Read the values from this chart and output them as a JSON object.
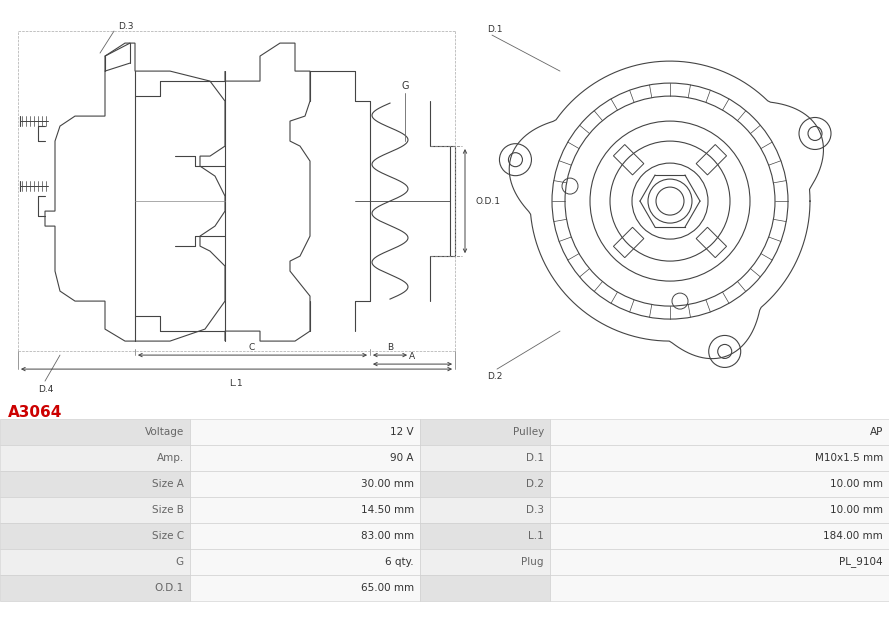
{
  "title": "A3064",
  "title_color": "#cc0000",
  "bg_color": "#ffffff",
  "table": {
    "left_labels": [
      "Voltage",
      "Amp.",
      "Size A",
      "Size B",
      "Size C",
      "G",
      "O.D.1"
    ],
    "left_values": [
      "12 V",
      "90 A",
      "30.00 mm",
      "14.50 mm",
      "83.00 mm",
      "6 qty.",
      "65.00 mm"
    ],
    "right_labels": [
      "Pulley",
      "D.1",
      "D.2",
      "D.3",
      "L.1",
      "Plug",
      ""
    ],
    "right_values": [
      "AP",
      "M10x1.5 mm",
      "10.00 mm",
      "10.00 mm",
      "184.00 mm",
      "PL_9104",
      ""
    ],
    "row_colors": [
      "#e2e2e2",
      "#efefef",
      "#e2e2e2",
      "#efefef",
      "#e2e2e2",
      "#efefef",
      "#e2e2e2"
    ],
    "label_color": "#666666",
    "value_color": "#333333"
  },
  "line_color": "#444444",
  "dim_color": "#444444",
  "lw": 0.8
}
